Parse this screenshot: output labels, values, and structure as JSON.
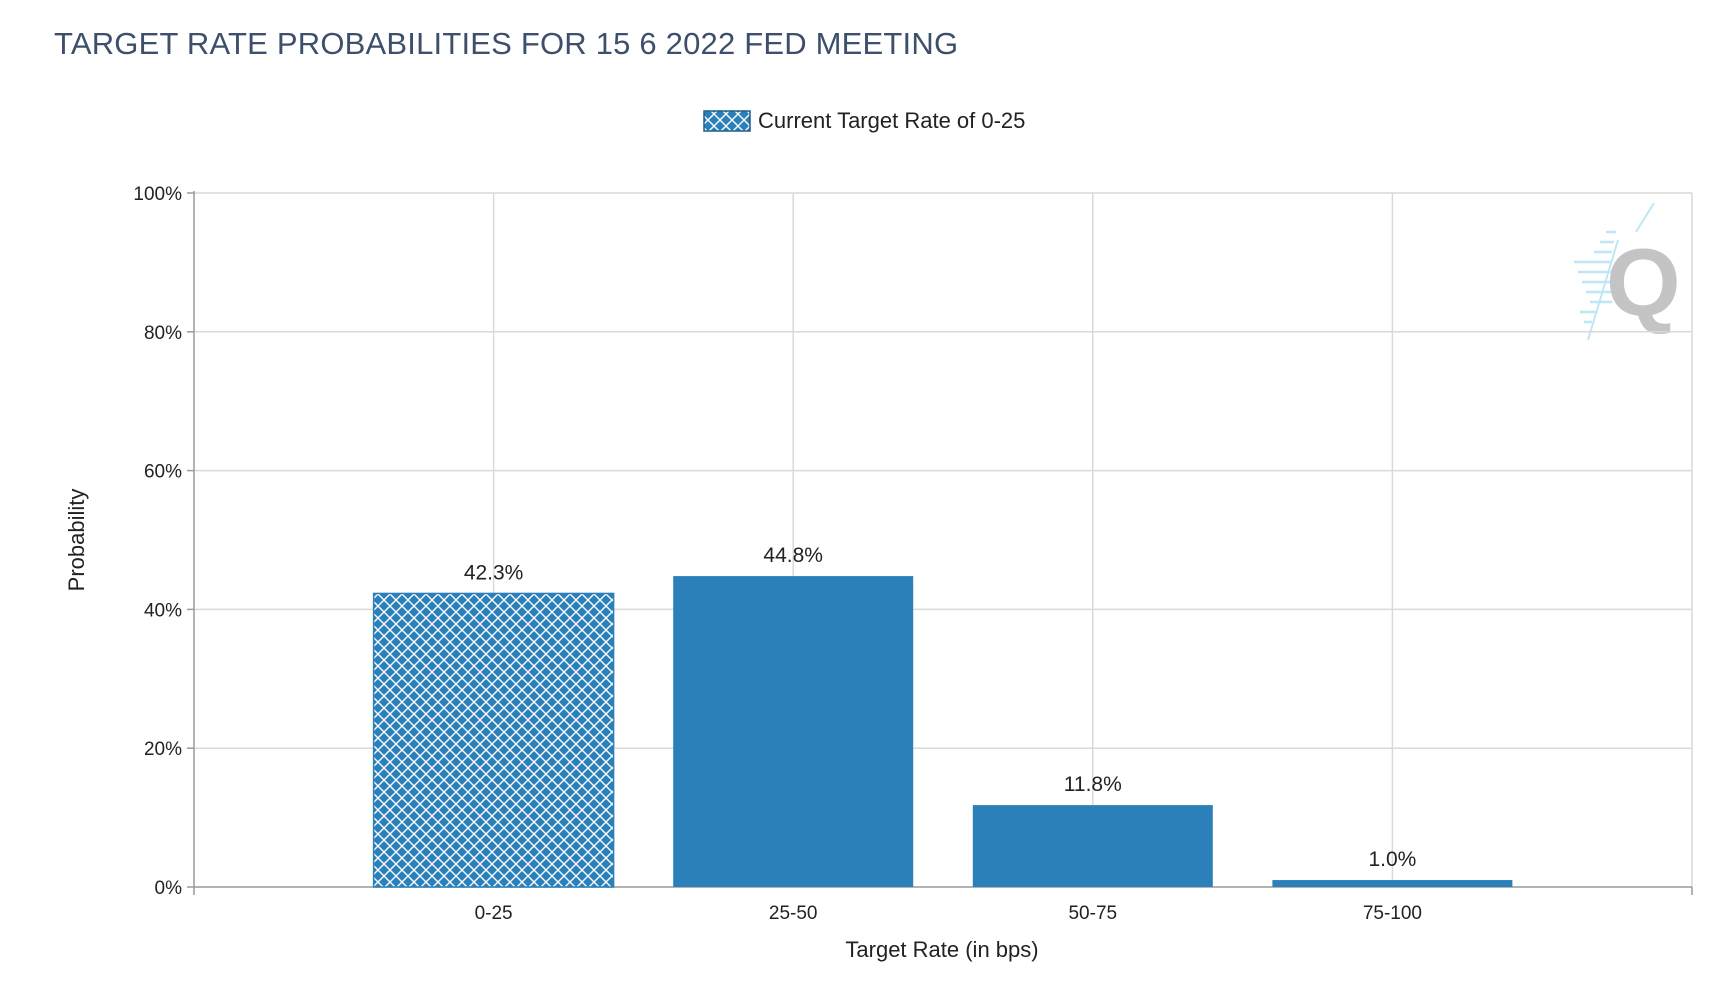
{
  "chart_data": {
    "type": "bar",
    "title": "TARGET RATE PROBABILITIES FOR 15 6 2022 FED MEETING",
    "legend": {
      "position": "top",
      "label": "Current Target Rate of 0-25"
    },
    "categories": [
      "0-25",
      "25-50",
      "50-75",
      "75-100"
    ],
    "values": [
      42.3,
      44.8,
      11.8,
      1.0
    ],
    "value_labels": [
      "42.3%",
      "44.8%",
      "11.8%",
      "1.0%"
    ],
    "highlight_category": "0-25",
    "xlabel": "Target Rate (in bps)",
    "ylabel": "Probability",
    "ylim": [
      0,
      100
    ],
    "yticks": [
      0,
      20,
      40,
      60,
      80,
      100
    ],
    "ytick_labels": [
      "0%",
      "20%",
      "40%",
      "60%",
      "80%",
      "100%"
    ],
    "grid": true,
    "colors": {
      "bar": "#2b80b9",
      "grid": "#d9d9d9",
      "axis": "#9a9a9a",
      "title": "#3e4f6c",
      "text": "#222222"
    },
    "watermark": "Q"
  }
}
